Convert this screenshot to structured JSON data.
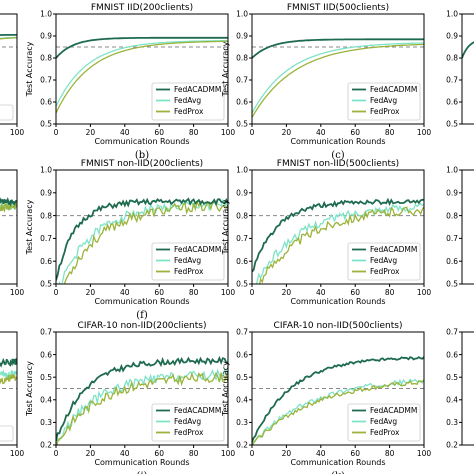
{
  "chart_data": [
    {
      "type": "line",
      "panel": "row1-left-partial",
      "title": "",
      "xlabel": "",
      "ylabel": "",
      "panel_label": "",
      "x_ticks": [
        "100"
      ],
      "y_ticks": [],
      "threshold": 0.85,
      "legend": [
        "MM"
      ],
      "ylim": [
        0.5,
        1.0
      ],
      "xlim": [
        0,
        100
      ],
      "series": [
        {
          "name": "FedACADMM",
          "final": 0.905,
          "start": 0.8,
          "rate": 0.08,
          "noise": 0.0,
          "seed": 1
        },
        {
          "name": "FedAvg",
          "final": 0.895,
          "start": 0.7,
          "rate": 0.05,
          "noise": 0.0,
          "seed": 2
        },
        {
          "name": "FedProx",
          "final": 0.893,
          "start": 0.68,
          "rate": 0.05,
          "noise": 0.0,
          "seed": 3
        }
      ]
    },
    {
      "type": "line",
      "panel": "row1-b",
      "title": "FMNIST IID(200clients)",
      "xlabel": "Communication Rounds",
      "ylabel": "Test Accuracy",
      "panel_label": "(b)",
      "x_ticks": [
        "0",
        "20",
        "40",
        "60",
        "80",
        "100"
      ],
      "y_ticks": [
        "0.5",
        "0.6",
        "0.7",
        "0.8",
        "0.9",
        "1.0"
      ],
      "ylim": [
        0.5,
        1.0
      ],
      "xlim": [
        0,
        100
      ],
      "threshold": 0.85,
      "legend": [
        "FedACADMM",
        "FedAvg",
        "FedProx"
      ],
      "series": [
        {
          "name": "FedACADMM",
          "final": 0.892,
          "start": 0.8,
          "rate": 0.1,
          "noise": 0.0,
          "seed": 11
        },
        {
          "name": "FedAvg",
          "final": 0.88,
          "start": 0.58,
          "rate": 0.055,
          "noise": 0.0,
          "seed": 12
        },
        {
          "name": "FedProx",
          "final": 0.878,
          "start": 0.55,
          "rate": 0.05,
          "noise": 0.0,
          "seed": 13
        }
      ]
    },
    {
      "type": "line",
      "panel": "row1-c",
      "title": "FMNIST IID(500clients)",
      "xlabel": "Communication Rounds",
      "ylabel": "Test Accuracy",
      "panel_label": "(c)",
      "x_ticks": [
        "0",
        "20",
        "40",
        "60",
        "80",
        "100"
      ],
      "y_ticks": [
        "0.5",
        "0.6",
        "0.7",
        "0.8",
        "0.9",
        "1.0"
      ],
      "ylim": [
        0.5,
        1.0
      ],
      "xlim": [
        0,
        100
      ],
      "threshold": 0.85,
      "legend": [
        "FedACADMM",
        "FedAvg",
        "FedProx"
      ],
      "series": [
        {
          "name": "FedACADMM",
          "final": 0.885,
          "start": 0.8,
          "rate": 0.09,
          "noise": 0.0,
          "seed": 21
        },
        {
          "name": "FedAvg",
          "final": 0.872,
          "start": 0.55,
          "rate": 0.045,
          "noise": 0.0,
          "seed": 22
        },
        {
          "name": "FedProx",
          "final": 0.868,
          "start": 0.53,
          "rate": 0.04,
          "noise": 0.0,
          "seed": 23
        }
      ]
    },
    {
      "type": "line",
      "panel": "row1-right-partial",
      "title": "",
      "xlabel": "",
      "ylabel": "",
      "panel_label": "",
      "x_ticks": [],
      "y_ticks": [
        "0.5",
        "0.6",
        "0.7",
        "0.8",
        "0.9",
        "1.0"
      ],
      "ylim": [
        0.5,
        1.0
      ],
      "xlim": [
        0,
        100
      ],
      "threshold": null,
      "legend": [],
      "series": [
        {
          "name": "FedACADMM",
          "final": 0.89,
          "start": 0.8,
          "rate": 0.08,
          "noise": 0.0,
          "seed": 31
        }
      ]
    },
    {
      "type": "line",
      "panel": "row2-left-partial",
      "title": "",
      "xlabel": "",
      "ylabel": "",
      "panel_label": "",
      "x_ticks": [
        "100"
      ],
      "y_ticks": [],
      "threshold": 0.8,
      "legend": [],
      "ylim": [
        0.5,
        1.0
      ],
      "xlim": [
        0,
        100
      ],
      "series": [
        {
          "name": "FedACADMM",
          "final": 0.86,
          "start": 0.75,
          "rate": 0.07,
          "noise": 0.012,
          "seed": 41
        },
        {
          "name": "FedAvg",
          "final": 0.85,
          "start": 0.65,
          "rate": 0.05,
          "noise": 0.02,
          "seed": 42
        },
        {
          "name": "FedProx",
          "final": 0.845,
          "start": 0.62,
          "rate": 0.05,
          "noise": 0.02,
          "seed": 43
        }
      ]
    },
    {
      "type": "line",
      "panel": "row2-f",
      "title": "FMNIST non-IID(200clients)",
      "xlabel": "Communication Rounds",
      "ylabel": "Test Accuracy",
      "panel_label": "(f)",
      "x_ticks": [
        "0",
        "20",
        "40",
        "60",
        "80",
        "100"
      ],
      "y_ticks": [
        "0.5",
        "0.6",
        "0.7",
        "0.8",
        "0.9",
        "1.0"
      ],
      "ylim": [
        0.5,
        1.0
      ],
      "xlim": [
        0,
        100
      ],
      "threshold": 0.8,
      "legend": [
        "FedACADMM",
        "FedAvg",
        "FedProx"
      ],
      "series": [
        {
          "name": "FedACADMM",
          "final": 0.862,
          "start": 0.52,
          "rate": 0.09,
          "noise": 0.012,
          "seed": 51
        },
        {
          "name": "FedAvg",
          "final": 0.852,
          "start": 0.45,
          "rate": 0.05,
          "noise": 0.02,
          "seed": 52
        },
        {
          "name": "FedProx",
          "final": 0.848,
          "start": 0.42,
          "rate": 0.045,
          "noise": 0.022,
          "seed": 53
        }
      ]
    },
    {
      "type": "line",
      "panel": "row2-g",
      "title": "FMNIST non-IID(500clients)",
      "xlabel": "Communication Rounds",
      "ylabel": "Test Accuracy",
      "panel_label": "",
      "x_ticks": [
        "0",
        "20",
        "40",
        "60",
        "80",
        "100"
      ],
      "y_ticks": [
        "0.5",
        "0.6",
        "0.7",
        "0.8",
        "0.9",
        "1.0"
      ],
      "ylim": [
        0.5,
        1.0
      ],
      "xlim": [
        0,
        100
      ],
      "threshold": 0.8,
      "legend": [
        "FedACADMM",
        "FedAvg",
        "FedProx"
      ],
      "series": [
        {
          "name": "FedACADMM",
          "final": 0.862,
          "start": 0.55,
          "rate": 0.07,
          "noise": 0.01,
          "seed": 61
        },
        {
          "name": "FedAvg",
          "final": 0.845,
          "start": 0.47,
          "rate": 0.04,
          "noise": 0.018,
          "seed": 62
        },
        {
          "name": "FedProx",
          "final": 0.838,
          "start": 0.45,
          "rate": 0.035,
          "noise": 0.02,
          "seed": 63
        }
      ]
    },
    {
      "type": "line",
      "panel": "row2-right-partial",
      "title": "",
      "xlabel": "",
      "ylabel": "",
      "panel_label": "",
      "x_ticks": [],
      "y_ticks": [
        "0.5",
        "0.6",
        "0.7",
        "0.8",
        "0.9",
        "1.0"
      ],
      "ylim": [
        0.5,
        1.0
      ],
      "xlim": [
        0,
        100
      ],
      "threshold": null,
      "legend": [],
      "series": []
    },
    {
      "type": "line",
      "panel": "row3-left-partial",
      "title": "",
      "xlabel": "",
      "ylabel": "",
      "panel_label": "",
      "x_ticks": [
        "100"
      ],
      "y_ticks": [],
      "threshold": 0.45,
      "legend": [
        "MM"
      ],
      "ylim": [
        0.2,
        0.7
      ],
      "xlim": [
        0,
        100
      ],
      "series": [
        {
          "name": "FedACADMM",
          "final": 0.57,
          "start": 0.35,
          "rate": 0.05,
          "noise": 0.015,
          "seed": 71
        },
        {
          "name": "FedAvg",
          "final": 0.52,
          "start": 0.25,
          "rate": 0.04,
          "noise": 0.02,
          "seed": 72
        },
        {
          "name": "FedProx",
          "final": 0.5,
          "start": 0.24,
          "rate": 0.04,
          "noise": 0.02,
          "seed": 73
        }
      ]
    },
    {
      "type": "line",
      "panel": "row3-j",
      "title": "CIFAR-10 non-IID(200clients)",
      "xlabel": "Communication Rounds",
      "ylabel": "Test Accuracy",
      "panel_label": "(j)",
      "x_ticks": [
        "0",
        "20",
        "40",
        "60",
        "80",
        "100"
      ],
      "y_ticks": [
        "0.2",
        "0.3",
        "0.4",
        "0.5",
        "0.6",
        "0.7"
      ],
      "ylim": [
        0.2,
        0.7
      ],
      "xlim": [
        0,
        100
      ],
      "threshold": 0.45,
      "legend": [
        "FedACADMM",
        "FedAvg",
        "FedProx"
      ],
      "series": [
        {
          "name": "FedACADMM",
          "final": 0.575,
          "start": 0.22,
          "rate": 0.06,
          "noise": 0.012,
          "seed": 81
        },
        {
          "name": "FedAvg",
          "final": 0.515,
          "start": 0.2,
          "rate": 0.045,
          "noise": 0.022,
          "seed": 82
        },
        {
          "name": "FedProx",
          "final": 0.505,
          "start": 0.2,
          "rate": 0.042,
          "noise": 0.022,
          "seed": 83
        }
      ]
    },
    {
      "type": "line",
      "panel": "row3-k",
      "title": "CIFAR-10 non-IID(500clients)",
      "xlabel": "Communication Rounds",
      "ylabel": "Test Accuracy",
      "panel_label": "(k)",
      "x_ticks": [
        "0",
        "20",
        "40",
        "60",
        "80",
        "100"
      ],
      "y_ticks": [
        "0.2",
        "0.3",
        "0.4",
        "0.5",
        "0.6",
        "0.7"
      ],
      "ylim": [
        0.2,
        0.7
      ],
      "xlim": [
        0,
        100
      ],
      "threshold": 0.45,
      "legend": [
        "FedACADMM",
        "FedAvg",
        "FedProx"
      ],
      "series": [
        {
          "name": "FedACADMM",
          "final": 0.59,
          "start": 0.21,
          "rate": 0.045,
          "noise": 0.006,
          "seed": 91
        },
        {
          "name": "FedAvg",
          "final": 0.5,
          "start": 0.2,
          "rate": 0.03,
          "noise": 0.01,
          "seed": 92
        },
        {
          "name": "FedProx",
          "final": 0.495,
          "start": 0.2,
          "rate": 0.028,
          "noise": 0.01,
          "seed": 93
        }
      ]
    },
    {
      "type": "line",
      "panel": "row3-right-partial",
      "title": "",
      "xlabel": "",
      "ylabel": "",
      "panel_label": "",
      "x_ticks": [],
      "y_ticks": [
        "0.2",
        "0.3",
        "0.4",
        "0.5",
        "0.6",
        "0.7"
      ],
      "ylim": [
        0.2,
        0.7
      ],
      "xlim": [
        0,
        100
      ],
      "threshold": null,
      "legend": [],
      "series": []
    }
  ],
  "colors": {
    "FedACADMM": "#1f6b4f",
    "FedAvg": "#7fe3c8",
    "FedProx": "#9bb33a",
    "threshold": "#888888",
    "axis": "#000000"
  }
}
